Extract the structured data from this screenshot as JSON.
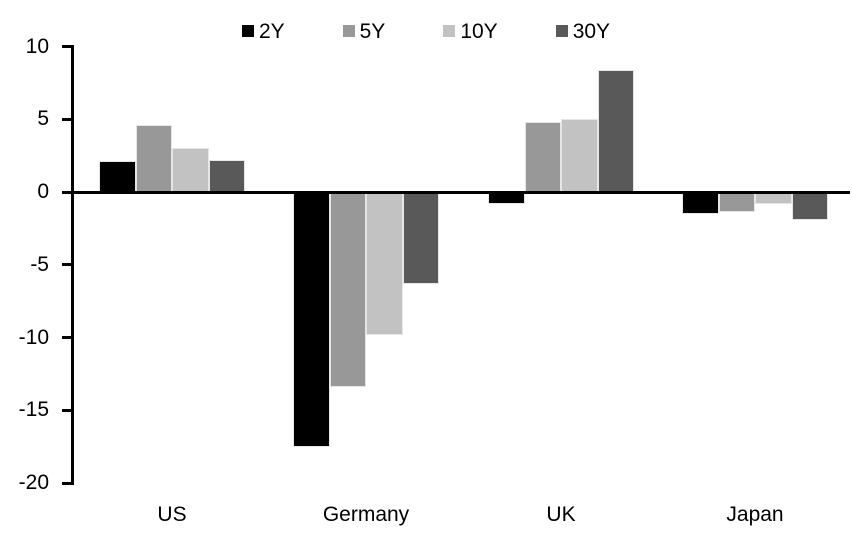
{
  "chart_data": {
    "type": "bar",
    "title": "",
    "xlabel": "",
    "ylabel": "",
    "categories": [
      "US",
      "Germany",
      "UK",
      "Japan"
    ],
    "series": [
      {
        "name": "2Y",
        "color": "#000000",
        "values": [
          2.1,
          -17.5,
          -0.8,
          -1.5
        ]
      },
      {
        "name": "5Y",
        "color": "#989898",
        "values": [
          4.6,
          -13.4,
          4.8,
          -1.4
        ]
      },
      {
        "name": "10Y",
        "color": "#c2c2c2",
        "values": [
          3.0,
          -9.8,
          5.0,
          -0.8
        ]
      },
      {
        "name": "30Y",
        "color": "#595959",
        "values": [
          2.2,
          -6.3,
          8.4,
          -1.9
        ]
      }
    ],
    "ylim": [
      -20,
      10
    ],
    "yticks": [
      10,
      5,
      0,
      -5,
      -10,
      -15,
      -20
    ],
    "grid": false,
    "legend_position": "top-center",
    "axis_color": "#000000",
    "background_color": "#ffffff"
  }
}
